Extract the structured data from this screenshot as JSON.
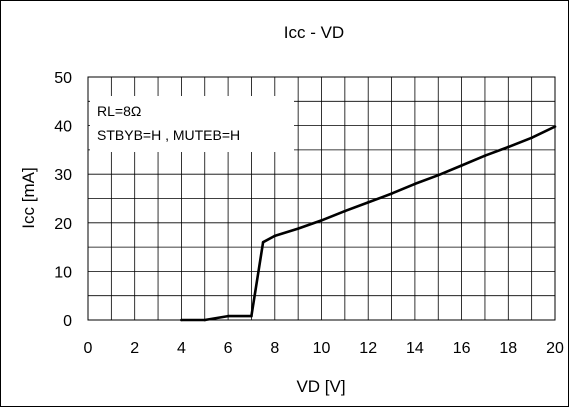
{
  "chart_data": {
    "type": "line",
    "title": "Icc - VD",
    "xlabel": "VD [V]",
    "ylabel": "Icc [mA]",
    "xlim": [
      0,
      20
    ],
    "ylim": [
      0,
      50
    ],
    "x_ticks": [
      0,
      2,
      4,
      6,
      8,
      10,
      12,
      14,
      16,
      18,
      20
    ],
    "y_ticks": [
      0,
      10,
      20,
      30,
      40,
      50
    ],
    "x_minor_step": 1,
    "y_minor_step": 5,
    "grid": true,
    "series": [
      {
        "x": [
          4,
          5,
          6,
          7,
          7.5,
          8,
          9,
          10,
          11,
          12,
          13,
          14,
          15,
          16,
          17,
          18,
          19,
          20
        ],
        "y": [
          0,
          0,
          0.8,
          0.8,
          16,
          17.3,
          18.8,
          20.5,
          22.4,
          24.2,
          26,
          28,
          29.8,
          31.8,
          33.8,
          35.6,
          37.5,
          39.8
        ]
      }
    ],
    "annotations": [
      "RL=8Ω",
      "STBYB=H , MUTEB=H"
    ]
  },
  "colors": {
    "line": "#000000",
    "grid": "#000000",
    "background": "#ffffff"
  }
}
